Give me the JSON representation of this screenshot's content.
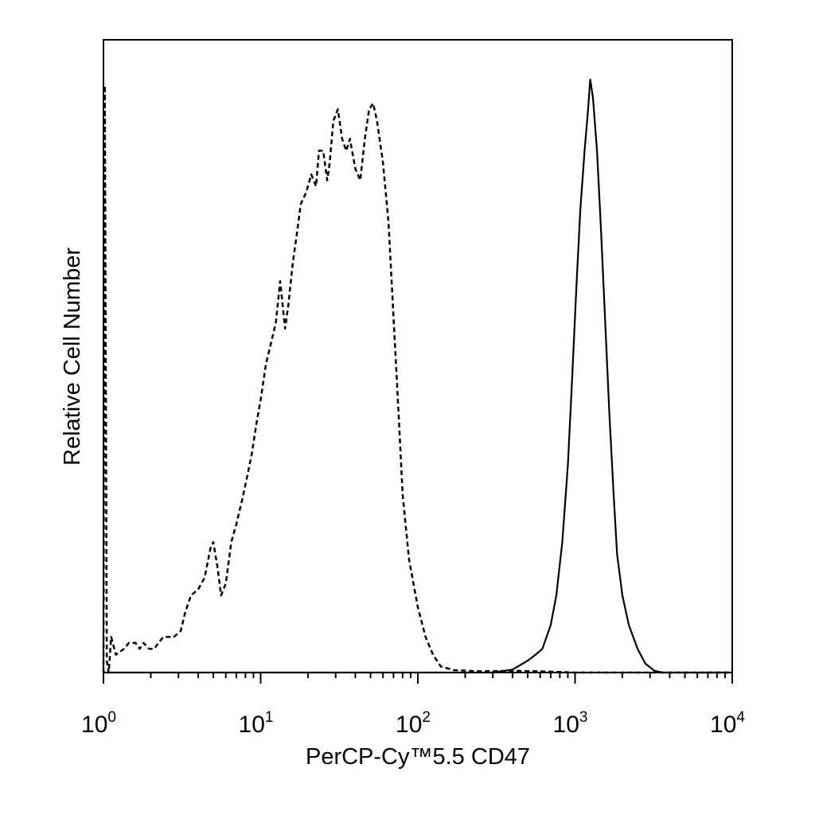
{
  "chart_data": {
    "type": "line",
    "title": "",
    "xlabel": "PerCP-Cy™5.5 CD47",
    "ylabel": "Relative Cell Number",
    "x_scale": "log",
    "xlim": [
      1,
      10000
    ],
    "ylim": [
      0,
      100
    ],
    "y_ticks_labeled": false,
    "grid": false,
    "legend": "none",
    "x_tick_labels": [
      {
        "base": "10",
        "exp": "0",
        "value": 1
      },
      {
        "base": "10",
        "exp": "1",
        "value": 10
      },
      {
        "base": "10",
        "exp": "2",
        "value": 100
      },
      {
        "base": "10",
        "exp": "3",
        "value": 1000
      },
      {
        "base": "10",
        "exp": "4",
        "value": 10000
      }
    ],
    "series": [
      {
        "style": "dashed",
        "color": "#000000",
        "points": [
          [
            1.0,
            0
          ],
          [
            1.02,
            99
          ],
          [
            1.05,
            2
          ],
          [
            1.08,
            0
          ],
          [
            1.12,
            6
          ],
          [
            1.2,
            3
          ],
          [
            1.35,
            4
          ],
          [
            1.45,
            5
          ],
          [
            1.6,
            5
          ],
          [
            1.7,
            4
          ],
          [
            1.8,
            5
          ],
          [
            1.95,
            4
          ],
          [
            2.1,
            4
          ],
          [
            2.4,
            6
          ],
          [
            2.8,
            6
          ],
          [
            3.1,
            7
          ],
          [
            3.3,
            10
          ],
          [
            3.6,
            13
          ],
          [
            4.0,
            14
          ],
          [
            4.4,
            16
          ],
          [
            4.8,
            21
          ],
          [
            5.0,
            22
          ],
          [
            5.3,
            18
          ],
          [
            5.6,
            13
          ],
          [
            6.0,
            15
          ],
          [
            6.5,
            22
          ],
          [
            7.0,
            25
          ],
          [
            7.6,
            29
          ],
          [
            8.2,
            33
          ],
          [
            8.8,
            37
          ],
          [
            9.4,
            42
          ],
          [
            10.0,
            46
          ],
          [
            10.8,
            52
          ],
          [
            11.5,
            55
          ],
          [
            12.5,
            59
          ],
          [
            13.3,
            66
          ],
          [
            14.3,
            58
          ],
          [
            15.0,
            62
          ],
          [
            16.0,
            69
          ],
          [
            17.0,
            74
          ],
          [
            18.0,
            79
          ],
          [
            19.5,
            81
          ],
          [
            21.0,
            84
          ],
          [
            22.5,
            82
          ],
          [
            23.5,
            88
          ],
          [
            25.0,
            88
          ],
          [
            26.5,
            83
          ],
          [
            27.5,
            86
          ],
          [
            29.0,
            93
          ],
          [
            31.0,
            95
          ],
          [
            33.0,
            90
          ],
          [
            35.0,
            88
          ],
          [
            37.0,
            90
          ],
          [
            40.0,
            85
          ],
          [
            43.0,
            83
          ],
          [
            46.0,
            90
          ],
          [
            49.0,
            95
          ],
          [
            52.0,
            96
          ],
          [
            55.0,
            93
          ],
          [
            60.0,
            86
          ],
          [
            65.0,
            76
          ],
          [
            70.0,
            60
          ],
          [
            75.0,
            45
          ],
          [
            80.0,
            30
          ],
          [
            88.0,
            19
          ],
          [
            100.0,
            11
          ],
          [
            112.0,
            6
          ],
          [
            125.0,
            3
          ],
          [
            140.0,
            1
          ],
          [
            170.0,
            0.4
          ],
          [
            250.0,
            0.2
          ],
          [
            400.0,
            0.3
          ],
          [
            600.0,
            0.2
          ],
          [
            1000.0,
            0
          ],
          [
            3000.0,
            0
          ],
          [
            10000.0,
            0
          ]
        ]
      },
      {
        "style": "solid",
        "color": "#000000",
        "points": [
          [
            1.0,
            0
          ],
          [
            300.0,
            0
          ],
          [
            400.0,
            0.5
          ],
          [
            500.0,
            2
          ],
          [
            560.0,
            3
          ],
          [
            620.0,
            4
          ],
          [
            700.0,
            8
          ],
          [
            760.0,
            13
          ],
          [
            830.0,
            22
          ],
          [
            900.0,
            35
          ],
          [
            960.0,
            50
          ],
          [
            1020.0,
            65
          ],
          [
            1080.0,
            78
          ],
          [
            1150.0,
            88
          ],
          [
            1210.0,
            95
          ],
          [
            1250.0,
            100
          ],
          [
            1300.0,
            97
          ],
          [
            1380.0,
            88
          ],
          [
            1460.0,
            75
          ],
          [
            1550.0,
            60
          ],
          [
            1650.0,
            44
          ],
          [
            1760.0,
            30
          ],
          [
            1850.0,
            20
          ],
          [
            2000.0,
            13
          ],
          [
            2200.0,
            8
          ],
          [
            2500.0,
            4
          ],
          [
            2800.0,
            1.5
          ],
          [
            3200.0,
            0.3
          ],
          [
            3600.0,
            0
          ],
          [
            10000.0,
            0
          ]
        ]
      }
    ]
  }
}
